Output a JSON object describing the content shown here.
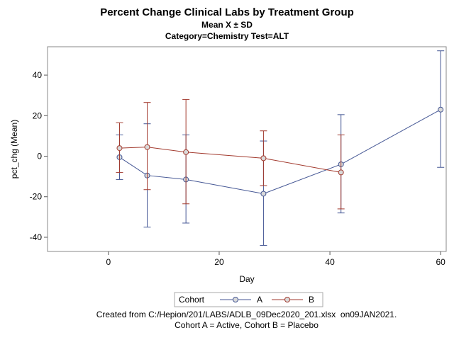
{
  "chart_data": {
    "type": "line",
    "title": "Percent Change Clinical Labs by Treatment Group",
    "subtitle": "Mean X ± SD",
    "subtitle2": "Category=Chemistry Test=ALT",
    "xlabel": "Day",
    "ylabel": "pct_chg (Mean)",
    "xlim": [
      -11,
      61
    ],
    "ylim": [
      -47,
      54
    ],
    "xticks": [
      0,
      20,
      40,
      60
    ],
    "yticks": [
      -40,
      -20,
      0,
      20,
      40
    ],
    "grid": false,
    "legend_title": "Cohort",
    "legend_position": "bottom",
    "series": [
      {
        "name": "A",
        "color": "#445694",
        "x": [
          2,
          7,
          14,
          28,
          42,
          60
        ],
        "y": [
          -0.5,
          -9.5,
          -11.5,
          -18.5,
          -4,
          23
        ],
        "lower": [
          -11.5,
          -35,
          -33,
          -44,
          -28,
          -5.5
        ],
        "upper": [
          10.5,
          16,
          10.5,
          7.5,
          20.5,
          52
        ]
      },
      {
        "name": "B",
        "color": "#A23A2E",
        "x": [
          2,
          7,
          14,
          28,
          42
        ],
        "y": [
          4,
          4.5,
          2,
          -1,
          -8
        ],
        "lower": [
          -8,
          -16.5,
          -23.5,
          -14.5,
          -26
        ],
        "upper": [
          16.5,
          26.5,
          28,
          12.5,
          10.5
        ]
      }
    ]
  },
  "footer": {
    "line1": "Created from C:/Hepion/201/LABS/ADLB_09Dec2020_201.xlsx  on09JAN2021.",
    "line2": "Cohort A = Active, Cohort B = Placebo"
  }
}
